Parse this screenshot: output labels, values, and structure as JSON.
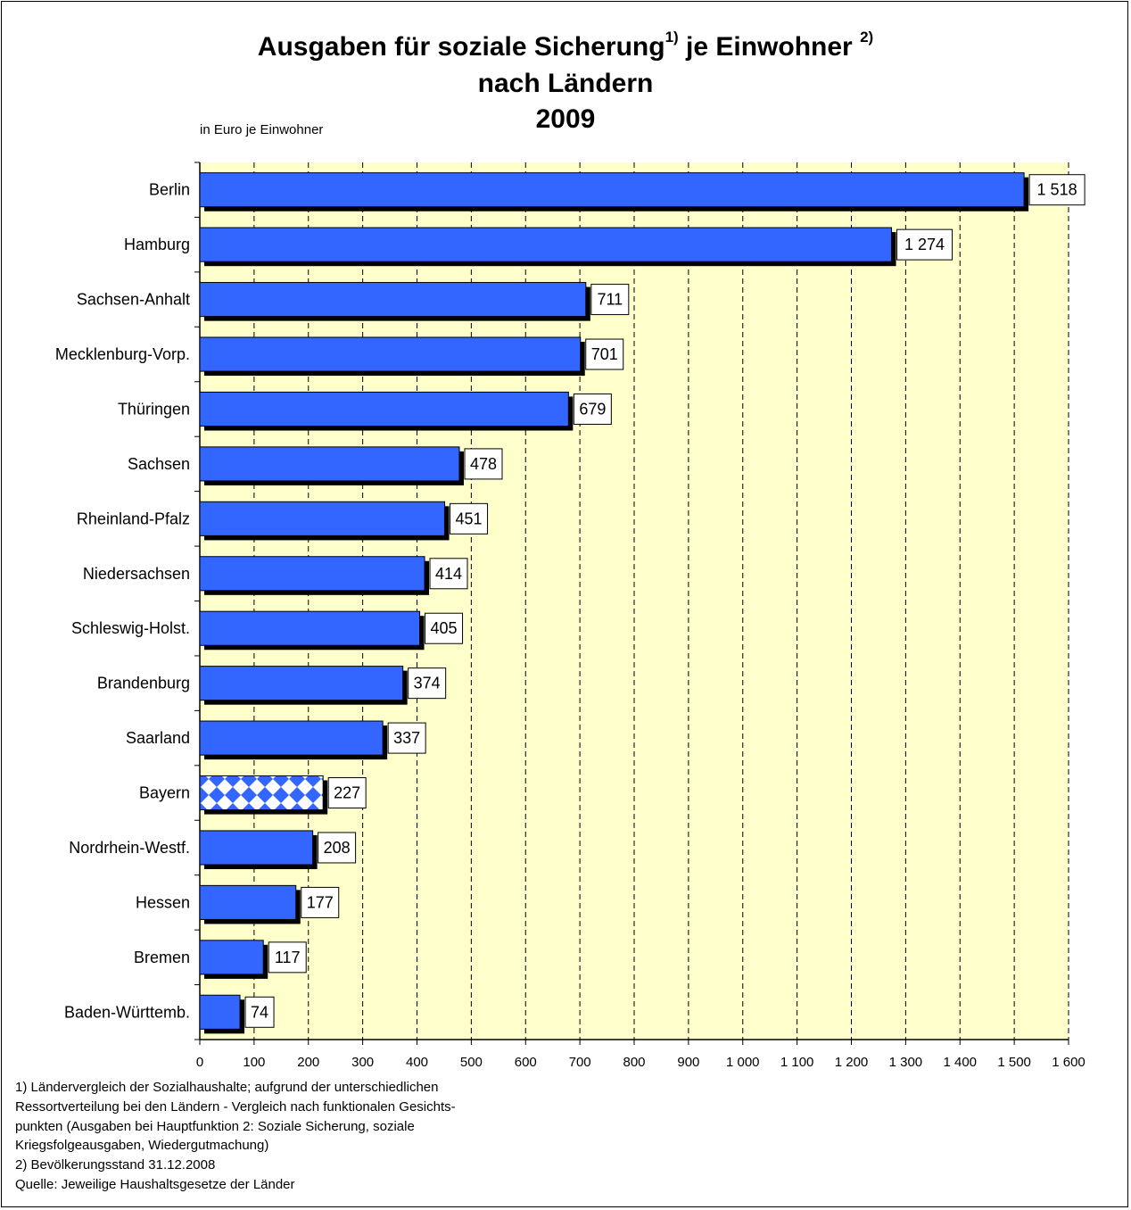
{
  "title_part1": "Ausgaben  für soziale Sicherung",
  "title_sup1": "1)",
  "title_part2": "je Einwohner",
  "title_sup2": "2)",
  "title_line2": "nach Ländern",
  "title_line3": "2009",
  "unit_label": "in Euro je Einwohner",
  "colors": {
    "bar": "#3366ff",
    "bar_highlight_pattern": "#3366ff",
    "plot_background": "#ffffcc",
    "shadow": "#000000"
  },
  "chart_data": {
    "type": "bar",
    "orientation": "horizontal",
    "title": "Ausgaben  für soziale Sicherung 1) je Einwohner 2) nach Ländern 2009",
    "xlabel": "in Euro je Einwohner",
    "ylabel": "",
    "xlim": [
      0,
      1600
    ],
    "xticks": [
      0,
      100,
      200,
      300,
      400,
      500,
      600,
      700,
      800,
      900,
      1000,
      1100,
      1200,
      1300,
      1400,
      1500,
      1600
    ],
    "xtick_labels": [
      "0",
      "100",
      "200",
      "300",
      "400",
      "500",
      "600",
      "700",
      "800",
      "900",
      "1 000",
      "1 100",
      "1 200",
      "1 300",
      "1 400",
      "1 500",
      "1 600"
    ],
    "grid": "vertical dashed",
    "categories": [
      "Berlin",
      "Hamburg",
      "Sachsen-Anhalt",
      "Mecklenburg-Vorp.",
      "Thüringen",
      "Sachsen",
      "Rheinland-Pfalz",
      "Niedersachsen",
      "Schleswig-Holst.",
      "Brandenburg",
      "Saarland",
      "Bayern",
      "Nordrhein-Westf.",
      "Hessen",
      "Bremen",
      "Baden-Württemb."
    ],
    "values": [
      1518,
      1274,
      711,
      701,
      679,
      478,
      451,
      414,
      405,
      374,
      337,
      227,
      208,
      177,
      117,
      74
    ],
    "value_labels": [
      "1 518",
      "1 274",
      "711",
      "701",
      "679",
      "478",
      "451",
      "414",
      "405",
      "374",
      "337",
      "227",
      "208",
      "177",
      "117",
      "74"
    ],
    "highlighted_category": "Bayern"
  },
  "footnotes": [
    "1) Ländervergleich der Sozialhaushalte; aufgrund der unterschiedlichen",
    "Ressortverteilung bei den Ländern - Vergleich nach funktionalen Gesichts-",
    "punkten (Ausgaben bei Hauptfunktion 2: Soziale Sicherung, soziale",
    "Kriegsfolgeausgaben, Wiedergutmachung)",
    "2) Bevölkerungsstand 31.12.2008",
    "Quelle: Jeweilige Haushaltsgesetze der Länder"
  ]
}
